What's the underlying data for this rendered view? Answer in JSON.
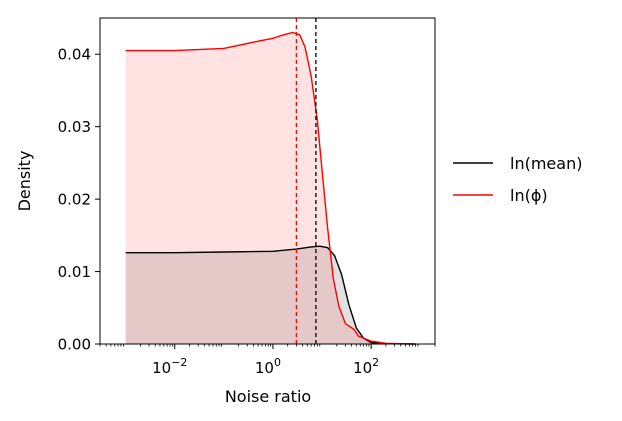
{
  "chart_data": {
    "type": "area",
    "title": "",
    "xlabel": "Noise ratio",
    "ylabel": "Density",
    "xscale": "log",
    "xlim": [
      0.0003,
      2000
    ],
    "ylim": [
      0,
      0.045
    ],
    "grid": false,
    "legend_position": "outside-right",
    "y_ticks": [
      "0.00",
      "0.01",
      "0.02",
      "0.03",
      "0.04"
    ],
    "x_ticks": [
      {
        "value": 0.01,
        "base": "10",
        "exp": "−2"
      },
      {
        "value": 1,
        "base": "10",
        "exp": "0"
      },
      {
        "value": 100,
        "base": "10",
        "exp": "2"
      }
    ],
    "series": [
      {
        "name": "ln(mean)",
        "color": "#000000",
        "fill": "rgba(120,120,120,0.22)",
        "points": [
          [
            0.001,
            0.0126
          ],
          [
            0.01,
            0.0126
          ],
          [
            0.1,
            0.0127
          ],
          [
            1,
            0.0128
          ],
          [
            3,
            0.0131
          ],
          [
            6,
            0.0134
          ],
          [
            9,
            0.0135
          ],
          [
            13,
            0.0133
          ],
          [
            18,
            0.0122
          ],
          [
            25,
            0.0096
          ],
          [
            35,
            0.0055
          ],
          [
            50,
            0.0022
          ],
          [
            70,
            0.0008
          ],
          [
            100,
            0.0002
          ],
          [
            200,
            5e-05
          ],
          [
            800,
            0.0
          ]
        ],
        "reference_line": 7.5
      },
      {
        "name": "ln(ϕ)",
        "color": "#ff0000",
        "fill": "rgba(255,60,60,0.14)",
        "points": [
          [
            0.001,
            0.0405
          ],
          [
            0.01,
            0.0405
          ],
          [
            0.1,
            0.0408
          ],
          [
            0.5,
            0.0418
          ],
          [
            1,
            0.0422
          ],
          [
            1.5,
            0.0426
          ],
          [
            2.5,
            0.043
          ],
          [
            3.5,
            0.0427
          ],
          [
            4.5,
            0.041
          ],
          [
            6,
            0.037
          ],
          [
            8,
            0.031
          ],
          [
            10,
            0.024
          ],
          [
            13,
            0.016
          ],
          [
            17,
            0.009
          ],
          [
            22,
            0.0052
          ],
          [
            30,
            0.0028
          ],
          [
            45,
            0.002
          ],
          [
            55,
            0.0011
          ],
          [
            70,
            0.0008
          ],
          [
            100,
            0.0004
          ],
          [
            200,
            0.0001
          ],
          [
            800,
            0.0
          ]
        ],
        "reference_line": 3.0
      }
    ]
  }
}
